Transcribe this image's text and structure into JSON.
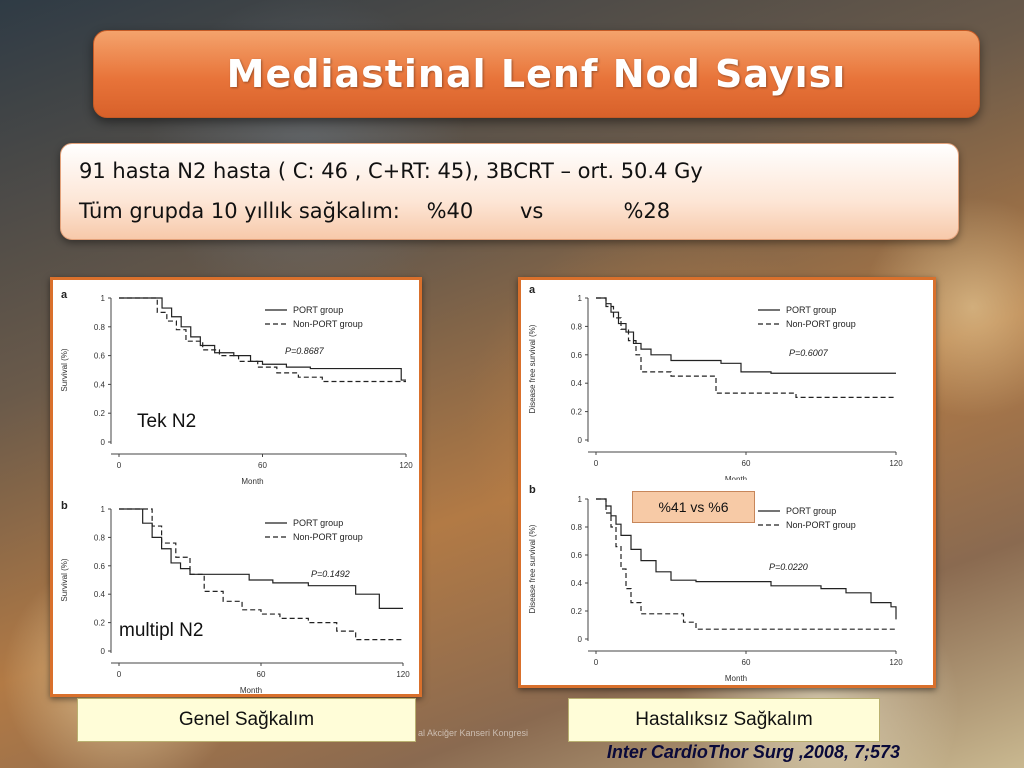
{
  "slide": {
    "title": "Mediastinal Lenf Nod Sayısı",
    "line1": "91 hasta N2 hasta ( C: 46 , C+RT: 45), 3BCRT – ort. 50.4 Gy",
    "line2": "Tüm grupda 10 yıllık sağkalım:    %40       vs            %28",
    "label_tek_n2": "Tek N2",
    "label_multipl_n2": "multipl N2",
    "annotation": "%41 vs %6",
    "caption_left": "Genel Sağkalım",
    "caption_right": "Hastalıksız Sağkalım",
    "footer_faint": "al Akciğer Kanseri Kongresi",
    "citation": "Inter CardioThor Surg ,2008, 7;573"
  },
  "chart_data": [
    {
      "type": "line",
      "panel": "a",
      "xlabel": "Month",
      "ylabel": "Survival (%)",
      "xlim": [
        0,
        120
      ],
      "ylim": [
        0,
        1
      ],
      "xticks": [
        0,
        60,
        120
      ],
      "yticks": [
        0,
        0.2,
        0.4,
        0.6,
        0.8,
        1
      ],
      "ytick_labels": [
        "0",
        "0.2",
        "0.4",
        "0.6",
        "0.8",
        "1"
      ],
      "p_value": "P=0.8687",
      "legend_position": "top-right",
      "series": [
        {
          "name": "PORT group",
          "style": "solid",
          "x": [
            0,
            12,
            18,
            22,
            26,
            30,
            34,
            40,
            48,
            55,
            60,
            70,
            80,
            95,
            118,
            120
          ],
          "y": [
            1,
            1,
            0.93,
            0.87,
            0.8,
            0.73,
            0.67,
            0.62,
            0.6,
            0.56,
            0.54,
            0.52,
            0.51,
            0.51,
            0.43,
            0.43
          ]
        },
        {
          "name": "Non-PORT group",
          "style": "dashed",
          "x": [
            0,
            10,
            16,
            20,
            24,
            28,
            35,
            42,
            50,
            58,
            66,
            75,
            85,
            100,
            120
          ],
          "y": [
            1,
            1,
            0.9,
            0.84,
            0.78,
            0.7,
            0.64,
            0.6,
            0.56,
            0.52,
            0.48,
            0.45,
            0.42,
            0.42,
            0.42
          ]
        }
      ]
    },
    {
      "type": "line",
      "panel": "b",
      "xlabel": "Month",
      "ylabel": "Survival (%)",
      "xlim": [
        0,
        120
      ],
      "ylim": [
        0,
        1
      ],
      "xticks": [
        0,
        60,
        120
      ],
      "yticks": [
        0,
        0.2,
        0.4,
        0.6,
        0.8,
        1
      ],
      "ytick_labels": [
        "0",
        "0.2",
        "0.4",
        "0.6",
        "0.8",
        "1"
      ],
      "p_value": "P=0.1492",
      "legend_position": "top-right",
      "series": [
        {
          "name": "PORT group",
          "style": "solid",
          "x": [
            0,
            6,
            10,
            14,
            18,
            22,
            26,
            30,
            40,
            55,
            65,
            80,
            100,
            110,
            120
          ],
          "y": [
            1,
            1,
            0.9,
            0.8,
            0.72,
            0.62,
            0.58,
            0.54,
            0.54,
            0.5,
            0.48,
            0.46,
            0.4,
            0.3,
            0.3
          ]
        },
        {
          "name": "Non-PORT group",
          "style": "dashed",
          "x": [
            0,
            8,
            14,
            18,
            24,
            30,
            36,
            44,
            52,
            60,
            68,
            80,
            92,
            100,
            110,
            120
          ],
          "y": [
            1,
            1,
            0.88,
            0.76,
            0.66,
            0.54,
            0.42,
            0.35,
            0.29,
            0.26,
            0.23,
            0.2,
            0.14,
            0.08,
            0.08,
            0.08
          ]
        }
      ]
    },
    {
      "type": "line",
      "panel": "a",
      "xlabel": "Month",
      "ylabel": "Disease free survival (%)",
      "xlim": [
        0,
        120
      ],
      "ylim": [
        0,
        1
      ],
      "xticks": [
        0,
        60,
        120
      ],
      "yticks": [
        0,
        0.2,
        0.4,
        0.6,
        0.8,
        1
      ],
      "ytick_labels": [
        "0",
        "0.2",
        "0.4",
        "0.6",
        "0.8",
        "1"
      ],
      "p_value": "P=0.6007",
      "legend_position": "top-right",
      "series": [
        {
          "name": "PORT group",
          "style": "solid",
          "x": [
            0,
            4,
            6,
            9,
            12,
            15,
            18,
            22,
            26,
            30,
            50,
            58,
            70,
            90,
            120
          ],
          "y": [
            1,
            0.96,
            0.9,
            0.82,
            0.76,
            0.68,
            0.64,
            0.6,
            0.6,
            0.56,
            0.54,
            0.48,
            0.47,
            0.47,
            0.47
          ]
        },
        {
          "name": "Non-PORT group",
          "style": "dashed",
          "x": [
            0,
            4,
            7,
            10,
            13,
            16,
            18,
            22,
            30,
            44,
            48,
            60,
            76,
            80,
            120
          ],
          "y": [
            1,
            0.94,
            0.86,
            0.78,
            0.7,
            0.6,
            0.48,
            0.48,
            0.45,
            0.45,
            0.33,
            0.33,
            0.33,
            0.3,
            0.3
          ]
        }
      ]
    },
    {
      "type": "line",
      "panel": "b",
      "xlabel": "Month",
      "ylabel": "Disease free survival (%)",
      "xlim": [
        0,
        120
      ],
      "ylim": [
        0,
        1
      ],
      "xticks": [
        0,
        60,
        120
      ],
      "yticks": [
        0,
        0.2,
        0.4,
        0.6,
        0.8,
        1
      ],
      "ytick_labels": [
        "0",
        "0.2",
        "0.4",
        "0.6",
        "0.8",
        "1"
      ],
      "p_value": "P=0.0220",
      "legend_position": "top-right",
      "series": [
        {
          "name": "PORT group",
          "style": "solid",
          "x": [
            0,
            4,
            6,
            8,
            10,
            14,
            18,
            24,
            30,
            40,
            60,
            70,
            90,
            100,
            110,
            118,
            120
          ],
          "y": [
            1,
            0.95,
            0.88,
            0.82,
            0.74,
            0.64,
            0.56,
            0.48,
            0.42,
            0.41,
            0.41,
            0.38,
            0.36,
            0.33,
            0.26,
            0.23,
            0.14
          ]
        },
        {
          "name": "Non-PORT group",
          "style": "dashed",
          "x": [
            0,
            4,
            6,
            8,
            10,
            12,
            14,
            18,
            30,
            35,
            40,
            60,
            120
          ],
          "y": [
            1,
            0.9,
            0.8,
            0.66,
            0.5,
            0.36,
            0.26,
            0.18,
            0.18,
            0.12,
            0.07,
            0.07,
            0.07
          ]
        }
      ]
    }
  ]
}
